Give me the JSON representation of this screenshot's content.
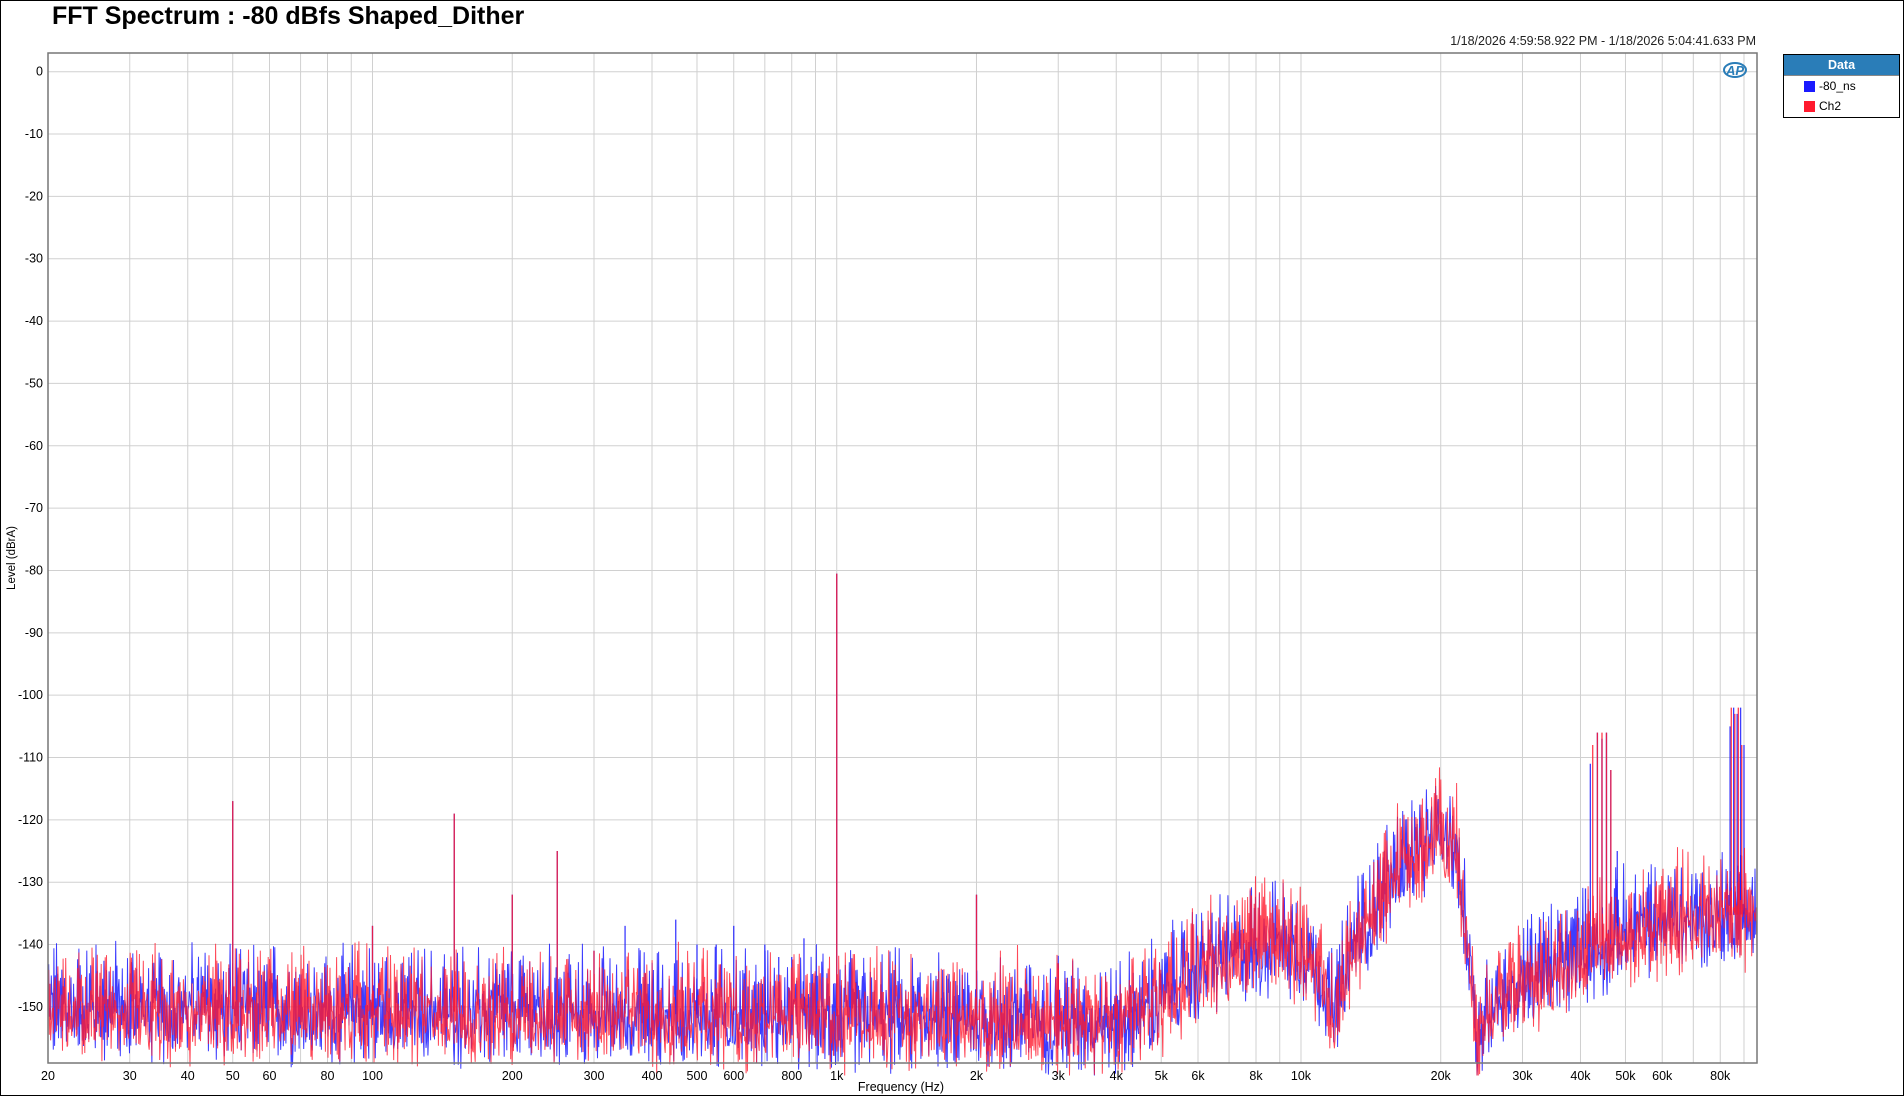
{
  "chart_data": {
    "type": "line",
    "title": "FFT Spectrum : -80 dBfs Shaped_Dither",
    "subtitle": "1/18/2026 4:59:58.922 PM - 1/18/2026 5:04:41.633 PM",
    "xlabel": "Frequency (Hz)",
    "ylabel": "Level (dBrA)",
    "xscale": "log",
    "xlim": [
      20,
      96000
    ],
    "ylim": [
      -159,
      3
    ],
    "grid": true,
    "legend": {
      "title": "Data",
      "placement": "right"
    },
    "x_ticks": [
      {
        "v": 20,
        "l": "20"
      },
      {
        "v": 30,
        "l": "30"
      },
      {
        "v": 40,
        "l": "40"
      },
      {
        "v": 50,
        "l": "50"
      },
      {
        "v": 60,
        "l": "60"
      },
      {
        "v": 80,
        "l": "80"
      },
      {
        "v": 100,
        "l": "100"
      },
      {
        "v": 200,
        "l": "200"
      },
      {
        "v": 300,
        "l": "300"
      },
      {
        "v": 400,
        "l": "400"
      },
      {
        "v": 500,
        "l": "500"
      },
      {
        "v": 600,
        "l": "600"
      },
      {
        "v": 800,
        "l": "800"
      },
      {
        "v": 1000,
        "l": "1k"
      },
      {
        "v": 2000,
        "l": "2k"
      },
      {
        "v": 3000,
        "l": "3k"
      },
      {
        "v": 4000,
        "l": "4k"
      },
      {
        "v": 5000,
        "l": "5k"
      },
      {
        "v": 6000,
        "l": "6k"
      },
      {
        "v": 8000,
        "l": "8k"
      },
      {
        "v": 10000,
        "l": "10k"
      },
      {
        "v": 20000,
        "l": "20k"
      },
      {
        "v": 30000,
        "l": "30k"
      },
      {
        "v": 40000,
        "l": "40k"
      },
      {
        "v": 50000,
        "l": "50k"
      },
      {
        "v": 60000,
        "l": "60k"
      },
      {
        "v": 80000,
        "l": "80k"
      }
    ],
    "y_ticks": [
      0,
      -10,
      -20,
      -30,
      -40,
      -50,
      -60,
      -70,
      -80,
      -90,
      -100,
      -110,
      -120,
      -130,
      -140,
      -150
    ],
    "series": [
      {
        "name": "-80_ns",
        "color": "#1a1aff",
        "noise_floor": [
          [
            20,
            -150
          ],
          [
            4000,
            -152
          ],
          [
            4500,
            -151
          ],
          [
            6000,
            -144
          ],
          [
            9000,
            -139
          ],
          [
            10500,
            -142
          ],
          [
            11800,
            -151
          ],
          [
            13000,
            -140
          ],
          [
            16000,
            -128
          ],
          [
            20000,
            -122
          ],
          [
            21500,
            -124
          ],
          [
            23000,
            -140
          ],
          [
            24000,
            -158
          ],
          [
            25000,
            -150
          ],
          [
            30000,
            -146
          ],
          [
            40000,
            -141
          ],
          [
            60000,
            -136
          ],
          [
            96000,
            -135
          ]
        ],
        "peaks": [
          [
            50,
            -117
          ],
          [
            100,
            -137
          ],
          [
            150,
            -119
          ],
          [
            200,
            -132
          ],
          [
            250,
            -125
          ],
          [
            300,
            -141
          ],
          [
            350,
            -137
          ],
          [
            450,
            -136
          ],
          [
            500,
            -140
          ],
          [
            550,
            -140
          ],
          [
            600,
            -137
          ],
          [
            700,
            -140
          ],
          [
            750,
            -142
          ],
          [
            800,
            -142
          ],
          [
            850,
            -139
          ],
          [
            900,
            -145
          ],
          [
            1000,
            -80.5
          ],
          [
            1100,
            -146
          ],
          [
            2000,
            -132
          ],
          [
            3000,
            -143
          ],
          [
            4000,
            -148
          ],
          [
            41000,
            -131
          ],
          [
            42000,
            -111
          ],
          [
            43500,
            -106
          ],
          [
            44500,
            -107
          ],
          [
            45500,
            -106
          ],
          [
            46500,
            -112
          ],
          [
            48000,
            -125
          ],
          [
            84000,
            -105
          ],
          [
            85500,
            -102
          ],
          [
            87000,
            -103
          ],
          [
            88500,
            -102
          ],
          [
            90000,
            -108
          ]
        ]
      },
      {
        "name": "Ch2",
        "color": "#ff1a2e",
        "noise_floor": [
          [
            20,
            -150
          ],
          [
            4000,
            -152
          ],
          [
            4500,
            -151
          ],
          [
            6000,
            -144
          ],
          [
            9000,
            -139
          ],
          [
            10500,
            -142
          ],
          [
            11800,
            -151
          ],
          [
            13000,
            -140
          ],
          [
            16000,
            -128
          ],
          [
            20000,
            -122
          ],
          [
            21500,
            -124
          ],
          [
            23000,
            -140
          ],
          [
            24000,
            -158
          ],
          [
            25000,
            -150
          ],
          [
            30000,
            -146
          ],
          [
            40000,
            -141
          ],
          [
            60000,
            -136
          ],
          [
            96000,
            -135
          ]
        ],
        "peaks": [
          [
            50,
            -117
          ],
          [
            100,
            -137
          ],
          [
            150,
            -119
          ],
          [
            200,
            -132
          ],
          [
            250,
            -125
          ],
          [
            300,
            -141
          ],
          [
            1000,
            -80.5
          ],
          [
            2000,
            -132
          ],
          [
            3000,
            -143
          ],
          [
            4000,
            -148
          ],
          [
            42500,
            -108
          ],
          [
            43500,
            -106
          ],
          [
            44500,
            -106
          ],
          [
            45500,
            -106
          ],
          [
            46500,
            -112
          ],
          [
            84500,
            -102
          ],
          [
            86000,
            -103
          ],
          [
            87500,
            -102
          ],
          [
            89000,
            -108
          ]
        ]
      }
    ]
  }
}
